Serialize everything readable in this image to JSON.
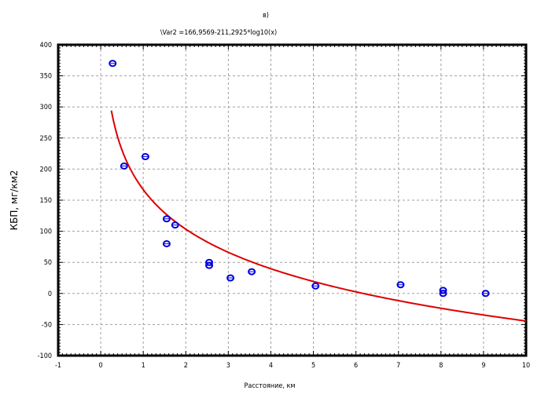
{
  "chart_data": {
    "type": "scatter",
    "panel_label": "в)",
    "equation": "\\Var2 =166,9569-211,2925*log10(x)",
    "xlabel": "Расстояние, км",
    "ylabel": "КБП, мг/км2",
    "xlim": [
      -1,
      10
    ],
    "ylim": [
      -100,
      400
    ],
    "xticks": [
      -1,
      0,
      1,
      2,
      3,
      4,
      5,
      6,
      7,
      8,
      9,
      10
    ],
    "yticks": [
      -100,
      -50,
      0,
      50,
      100,
      150,
      200,
      250,
      300,
      350,
      400
    ],
    "grid": true,
    "points": [
      {
        "x": 0.28,
        "y": 370
      },
      {
        "x": 0.55,
        "y": 205
      },
      {
        "x": 1.05,
        "y": 220
      },
      {
        "x": 1.55,
        "y": 120
      },
      {
        "x": 1.55,
        "y": 80
      },
      {
        "x": 1.75,
        "y": 110
      },
      {
        "x": 2.55,
        "y": 50
      },
      {
        "x": 2.55,
        "y": 45
      },
      {
        "x": 3.05,
        "y": 25
      },
      {
        "x": 3.55,
        "y": 35
      },
      {
        "x": 5.05,
        "y": 12
      },
      {
        "x": 7.05,
        "y": 14
      },
      {
        "x": 8.05,
        "y": 5
      },
      {
        "x": 8.05,
        "y": 0
      },
      {
        "x": 9.05,
        "y": 0
      }
    ],
    "fit": {
      "a": 166.9569,
      "b": -211.2925,
      "x_from": 0.25,
      "x_to": 10
    },
    "colors": {
      "points": "#0000dd",
      "fit": "#dd0000",
      "grid": "#a0a0a0",
      "frame": "#000000"
    }
  }
}
